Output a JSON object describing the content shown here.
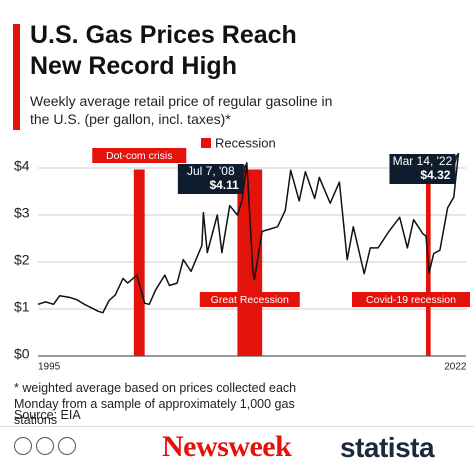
{
  "chart_data": {
    "type": "line",
    "title": "U.S. Gas Prices Reach New Record High",
    "subtitle": "Weekly average retail price of regular gasoline in the U.S. (per gallon, incl. taxes)*",
    "x": [
      1995.0,
      1995.5,
      1996.0,
      1996.4,
      1997.0,
      1997.5,
      1998.0,
      1998.9,
      1999.2,
      1999.6,
      2000.0,
      2000.5,
      2000.8,
      2001.4,
      2001.9,
      2002.2,
      2002.6,
      2003.2,
      2003.5,
      2004.0,
      2004.4,
      2004.9,
      2005.6,
      2005.7,
      2005.95,
      2006.6,
      2006.9,
      2007.4,
      2007.9,
      2008.2,
      2008.51,
      2008.9,
      2009.0,
      2009.5,
      2010.0,
      2010.5,
      2011.0,
      2011.35,
      2011.9,
      2012.3,
      2012.9,
      2013.2,
      2013.9,
      2014.5,
      2015.0,
      2015.4,
      2016.1,
      2016.5,
      2017.0,
      2017.7,
      2018.4,
      2018.9,
      2019.3,
      2019.9,
      2020.1,
      2020.3,
      2020.6,
      2021.0,
      2021.5,
      2021.9,
      2022.2
    ],
    "values": [
      1.1,
      1.15,
      1.1,
      1.28,
      1.25,
      1.2,
      1.1,
      0.95,
      0.92,
      1.18,
      1.3,
      1.65,
      1.55,
      1.72,
      1.12,
      1.1,
      1.4,
      1.72,
      1.5,
      1.55,
      2.05,
      1.8,
      2.35,
      3.05,
      2.2,
      3.0,
      2.2,
      3.2,
      3.0,
      3.3,
      4.11,
      1.8,
      1.62,
      2.65,
      2.7,
      2.75,
      3.1,
      3.95,
      3.3,
      3.92,
      3.35,
      3.8,
      3.25,
      3.7,
      2.05,
      2.75,
      1.75,
      2.3,
      2.3,
      2.65,
      2.95,
      2.3,
      2.9,
      2.6,
      2.55,
      1.77,
      2.18,
      2.25,
      3.15,
      3.38,
      4.32
    ],
    "color": "#111111",
    "xlim": [
      1995,
      2022.3
    ],
    "xticks": [
      1995,
      2022
    ],
    "ylim": [
      0,
      4.35
    ],
    "yticks": [
      {
        "value": 0,
        "label": "$0"
      },
      {
        "value": 1,
        "label": "$1"
      },
      {
        "value": 2,
        "label": "$2"
      },
      {
        "value": 3,
        "label": "$3"
      },
      {
        "value": 4,
        "label": "$4"
      }
    ],
    "grid": true,
    "recession_legend": "Recession",
    "recession_color": "#e3120b",
    "recessions": [
      {
        "label": "Dot-com crisis",
        "start": 2001.2,
        "end": 2001.9,
        "label_position": "top"
      },
      {
        "label": "Great Recession",
        "start": 2007.9,
        "end": 2009.5,
        "label_position": "bottom"
      },
      {
        "label": "Covid-19 recession",
        "start": 2020.1,
        "end": 2020.4,
        "label_position": "bottom"
      }
    ],
    "annotations": [
      {
        "date": "Jul 7, '08",
        "x": 2008.51,
        "value": 4.11,
        "label": "$4.11"
      },
      {
        "date": "Mar 14, '22",
        "x": 2022.2,
        "value": 4.32,
        "label": "$4.32"
      }
    ],
    "footnote": "* weighted average based on prices collected each Monday from a sample of approximately 1,000 gas stations",
    "source": "Source: EIA"
  },
  "brands": [
    "Newsweek",
    "statista"
  ]
}
